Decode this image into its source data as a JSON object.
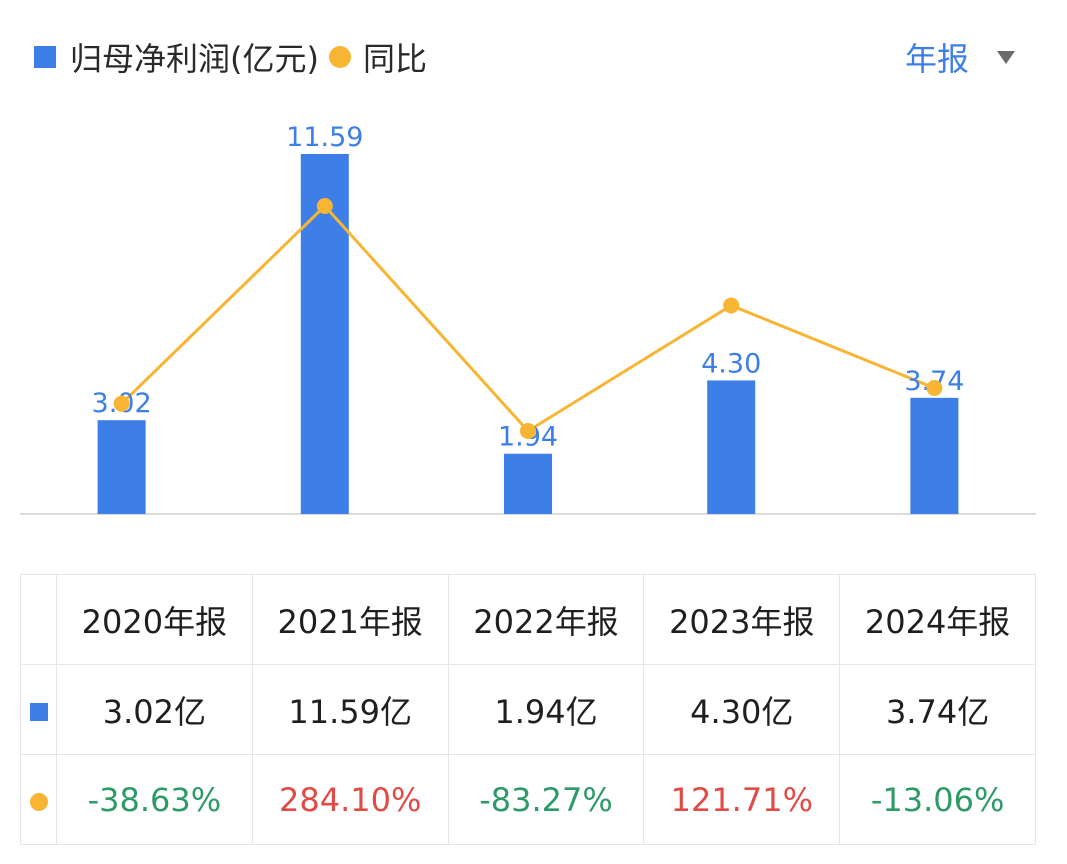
{
  "legend": {
    "series1": "归母净利润(亿元)",
    "series2": "同比"
  },
  "period_selector": {
    "label": "年报"
  },
  "colors": {
    "bar": "#3d7fe6",
    "line": "#f8b533",
    "positive": "#e04b45",
    "negative": "#2e9a68"
  },
  "chart_data": {
    "type": "bar",
    "categories": [
      "2020年报",
      "2021年报",
      "2022年报",
      "2023年报",
      "2024年报"
    ],
    "series": [
      {
        "name": "归母净利润(亿元)",
        "type": "bar",
        "values": [
          3.02,
          11.59,
          1.94,
          4.3,
          3.74
        ],
        "labels": [
          "3.02",
          "11.59",
          "1.94",
          "4.30",
          "3.74"
        ]
      },
      {
        "name": "同比",
        "type": "line",
        "values": [
          -38.63,
          284.1,
          -83.27,
          121.71,
          -13.06
        ]
      }
    ]
  },
  "table": {
    "headers": [
      "2020年报",
      "2021年报",
      "2022年报",
      "2023年报",
      "2024年报"
    ],
    "profit": [
      "3.02亿",
      "11.59亿",
      "1.94亿",
      "4.30亿",
      "3.74亿"
    ],
    "yoy": [
      "-38.63%",
      "284.10%",
      "-83.27%",
      "121.71%",
      "-13.06%"
    ]
  }
}
